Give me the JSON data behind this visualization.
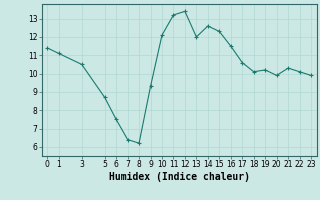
{
  "x": [
    0,
    1,
    3,
    5,
    6,
    7,
    8,
    9,
    10,
    11,
    12,
    13,
    14,
    15,
    16,
    17,
    18,
    19,
    20,
    21,
    22,
    23
  ],
  "y": [
    11.4,
    11.1,
    10.5,
    8.7,
    7.5,
    6.4,
    6.2,
    9.3,
    12.1,
    13.2,
    13.4,
    12.0,
    12.6,
    12.3,
    11.5,
    10.6,
    10.1,
    10.2,
    9.9,
    10.3,
    10.1,
    9.9
  ],
  "line_color": "#1a7a6e",
  "bg_color": "#cce8e4",
  "grid_color": "#b0d8d4",
  "xlabel": "Humidex (Indice chaleur)",
  "xlim": [
    -0.5,
    23.5
  ],
  "ylim": [
    5.5,
    13.8
  ],
  "xticks": [
    0,
    1,
    3,
    5,
    6,
    7,
    8,
    9,
    10,
    11,
    12,
    13,
    14,
    15,
    16,
    17,
    18,
    19,
    20,
    21,
    22,
    23
  ],
  "yticks": [
    6,
    7,
    8,
    9,
    10,
    11,
    12,
    13
  ],
  "tick_fontsize": 5.5,
  "xlabel_fontsize": 7.0
}
